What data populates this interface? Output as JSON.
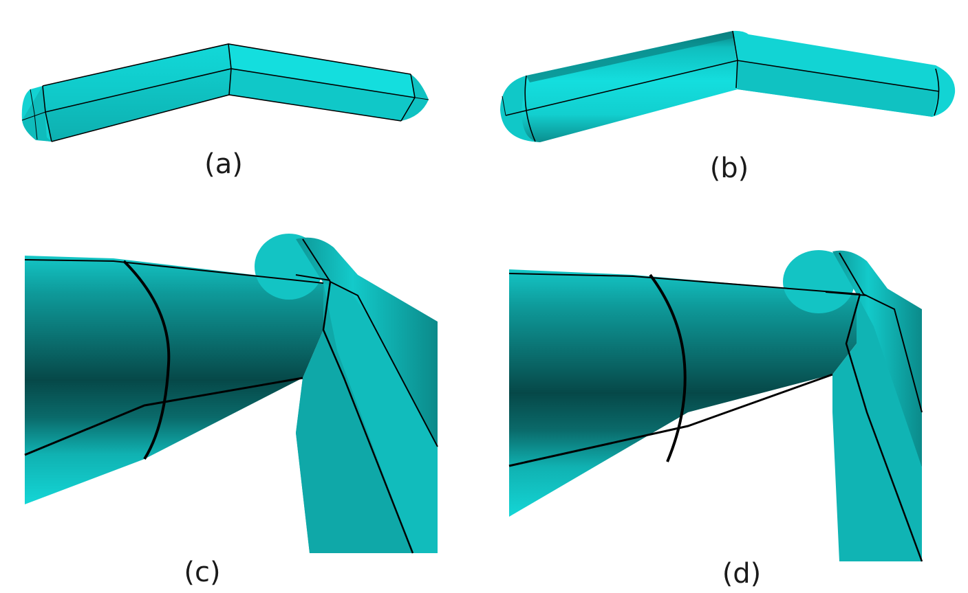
{
  "figure": {
    "panels": [
      {
        "id": "a",
        "caption": "(a)"
      },
      {
        "id": "b",
        "caption": "(b)"
      },
      {
        "id": "c",
        "caption": "(c)"
      },
      {
        "id": "d",
        "caption": "(d)"
      }
    ]
  },
  "colors": {
    "mesh_light": "#11dada",
    "mesh_mid": "#0bbcbc",
    "mesh_dark": "#0a6e6e",
    "mesh_darkest": "#053c3c",
    "edge": "#000000",
    "background": "#ffffff"
  }
}
